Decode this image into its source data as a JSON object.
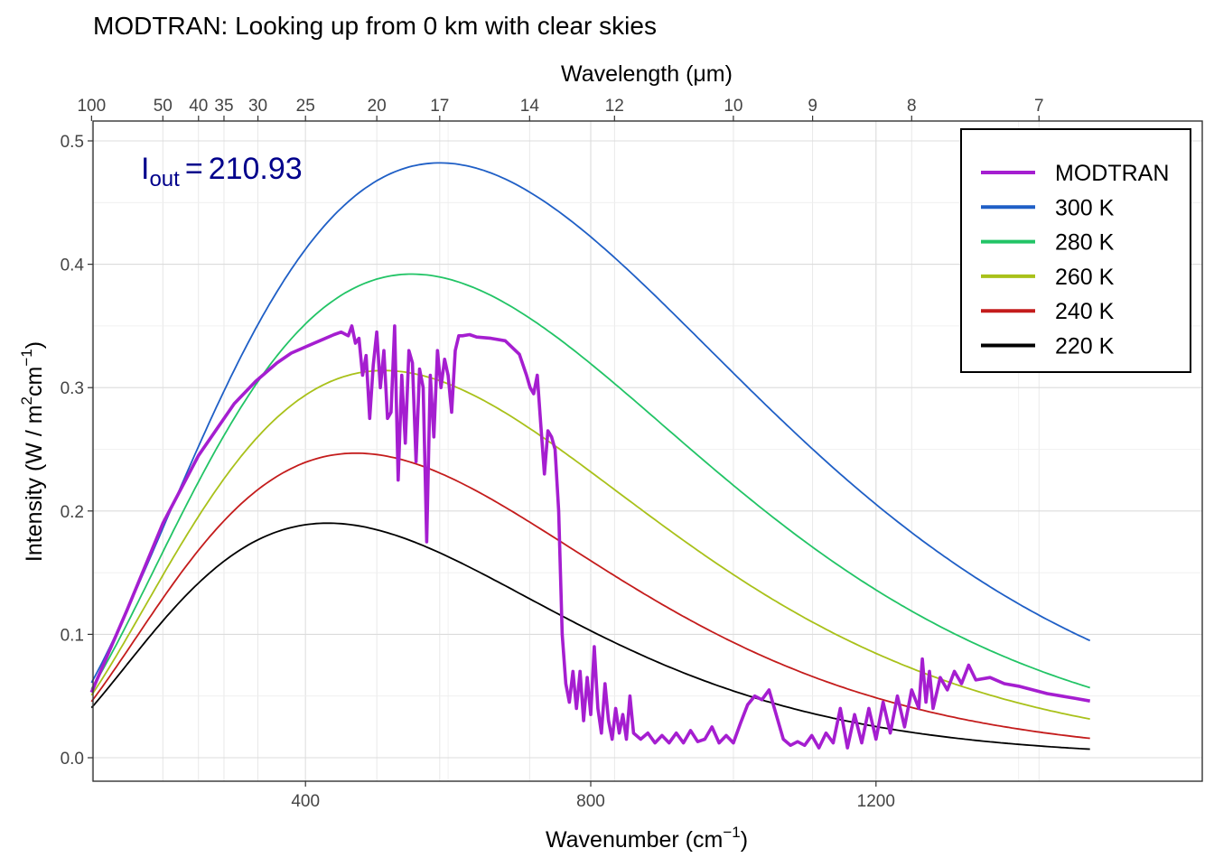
{
  "chart_data": {
    "type": "line",
    "title": "MODTRAN: Looking up from 0 km with clear skies",
    "xlabel": "Wavenumber (cm",
    "xlabel_sup": "−1",
    "xlabel_end": ")",
    "ylabel": "Intensity (W / m",
    "ylabel_sup1": "2",
    "ylabel_mid": "cm",
    "ylabel_sup2": "−1",
    "ylabel_end": ")",
    "top_axis_label": "Wavelength (μm)",
    "xlim": [
      100,
      1500
    ],
    "ylim": [
      0,
      0.5
    ],
    "x_ticks": [
      400,
      800,
      1200
    ],
    "x_tick_labels": [
      "400",
      "800",
      "1200"
    ],
    "y_ticks": [
      0,
      0.1,
      0.2,
      0.3,
      0.4,
      0.5
    ],
    "y_tick_labels": [
      "0.0",
      "0.1",
      "0.2",
      "0.3",
      "0.4",
      "0.5"
    ],
    "top_ticks": [
      100,
      50,
      40,
      35,
      30,
      25,
      20,
      17,
      14,
      12,
      10,
      9,
      8,
      7
    ],
    "top_tick_labels": [
      "100",
      "50",
      "40",
      "35",
      "30",
      "25",
      "20",
      "17",
      "14",
      "12",
      "10",
      "9",
      "8",
      "7"
    ],
    "grid": true,
    "legend_position": "top-right",
    "annotation": {
      "symbol": "I",
      "subscript": "out",
      "equals": "=",
      "value": "210.93"
    },
    "series": [
      {
        "name": "MODTRAN",
        "color": "#a51ed0",
        "x": [
          100,
          150,
          200,
          250,
          300,
          330,
          360,
          380,
          400,
          420,
          440,
          450,
          460,
          465,
          470,
          475,
          480,
          485,
          490,
          495,
          500,
          505,
          510,
          515,
          520,
          525,
          530,
          535,
          540,
          545,
          550,
          555,
          560,
          565,
          570,
          575,
          580,
          585,
          590,
          595,
          600,
          605,
          610,
          615,
          620,
          630,
          640,
          660,
          680,
          700,
          710,
          715,
          720,
          725,
          730,
          735,
          740,
          745,
          750,
          755,
          760,
          765,
          770,
          775,
          780,
          785,
          790,
          795,
          800,
          805,
          810,
          815,
          820,
          825,
          830,
          835,
          840,
          845,
          850,
          855,
          860,
          870,
          880,
          890,
          900,
          910,
          920,
          930,
          940,
          950,
          960,
          970,
          980,
          990,
          1000,
          1010,
          1020,
          1030,
          1040,
          1050,
          1060,
          1070,
          1080,
          1090,
          1100,
          1110,
          1120,
          1130,
          1140,
          1150,
          1160,
          1170,
          1180,
          1190,
          1200,
          1210,
          1220,
          1230,
          1240,
          1250,
          1260,
          1265,
          1270,
          1275,
          1280,
          1290,
          1300,
          1310,
          1320,
          1330,
          1340,
          1360,
          1380,
          1400,
          1420,
          1440,
          1460,
          1480,
          1500
        ],
        "y": [
          0.053,
          0.12,
          0.19,
          0.245,
          0.287,
          0.305,
          0.32,
          0.328,
          0.333,
          0.338,
          0.343,
          0.345,
          0.342,
          0.35,
          0.336,
          0.34,
          0.31,
          0.326,
          0.275,
          0.318,
          0.345,
          0.3,
          0.33,
          0.275,
          0.28,
          0.35,
          0.225,
          0.31,
          0.255,
          0.33,
          0.32,
          0.24,
          0.315,
          0.3,
          0.175,
          0.31,
          0.26,
          0.33,
          0.3,
          0.323,
          0.31,
          0.28,
          0.33,
          0.342,
          0.342,
          0.343,
          0.341,
          0.34,
          0.338,
          0.327,
          0.31,
          0.3,
          0.295,
          0.31,
          0.27,
          0.23,
          0.265,
          0.26,
          0.25,
          0.2,
          0.1,
          0.06,
          0.045,
          0.07,
          0.04,
          0.07,
          0.03,
          0.065,
          0.035,
          0.09,
          0.04,
          0.02,
          0.06,
          0.03,
          0.015,
          0.04,
          0.02,
          0.035,
          0.015,
          0.05,
          0.02,
          0.015,
          0.02,
          0.012,
          0.018,
          0.012,
          0.02,
          0.012,
          0.022,
          0.013,
          0.015,
          0.025,
          0.012,
          0.018,
          0.012,
          0.028,
          0.043,
          0.05,
          0.047,
          0.055,
          0.035,
          0.015,
          0.01,
          0.013,
          0.01,
          0.018,
          0.008,
          0.02,
          0.012,
          0.04,
          0.008,
          0.035,
          0.012,
          0.04,
          0.015,
          0.045,
          0.02,
          0.05,
          0.025,
          0.055,
          0.04,
          0.08,
          0.045,
          0.07,
          0.04,
          0.065,
          0.055,
          0.07,
          0.06,
          0.075,
          0.063,
          0.065,
          0.06,
          0.058,
          0.055,
          0.052,
          0.05,
          0.048,
          0.046
        ]
      },
      {
        "name": "300 K",
        "color": "#1f5fc6",
        "kind": "planck",
        "temperature": 300
      },
      {
        "name": "280 K",
        "color": "#22c466",
        "kind": "planck",
        "temperature": 280
      },
      {
        "name": "260 K",
        "color": "#a9c11a",
        "kind": "planck",
        "temperature": 260
      },
      {
        "name": "240 K",
        "color": "#c41c1c",
        "kind": "planck",
        "temperature": 240
      },
      {
        "name": "220 K",
        "color": "#000000",
        "kind": "planck",
        "temperature": 220
      }
    ]
  }
}
